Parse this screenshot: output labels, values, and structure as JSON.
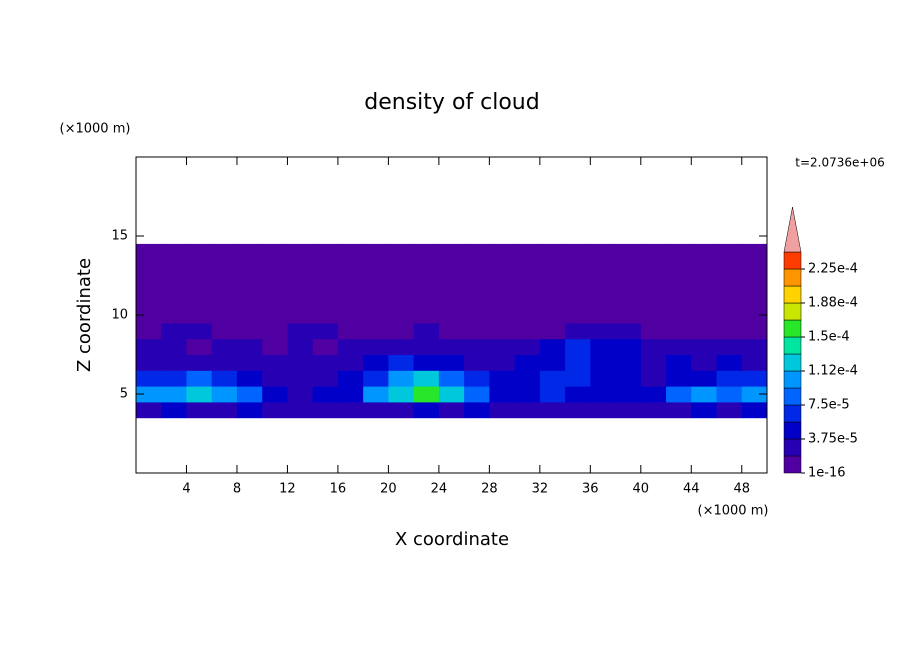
{
  "chart_data": {
    "type": "contour",
    "title": "density of cloud",
    "x_label": "X coordinate",
    "y_label": "Z coordinate",
    "x_unit": "(×1000 m)",
    "y_unit": "(×1000 m)",
    "annotation": "t=2.0736e+06",
    "xlim": [
      0,
      50
    ],
    "ylim": [
      0,
      20
    ],
    "xticks": [
      4,
      8,
      12,
      16,
      20,
      24,
      28,
      32,
      36,
      40,
      44,
      48
    ],
    "yticks": [
      5,
      10,
      15
    ],
    "field": {
      "x_edges": [
        0,
        2,
        4,
        6,
        8,
        10,
        12,
        14,
        16,
        18,
        20,
        22,
        24,
        26,
        28,
        30,
        32,
        34,
        36,
        38,
        40,
        42,
        44,
        46,
        48,
        50
      ],
      "z_edges": [
        3.5,
        4.5,
        5.5,
        6.5,
        7.5,
        8.5,
        9.5,
        14.5
      ],
      "values": [
        [
          3e-05,
          4e-05,
          3e-05,
          3e-05,
          4e-05,
          2e-05,
          2e-05,
          2e-05,
          3e-05,
          2e-05,
          3e-05,
          4e-05,
          3e-05,
          4e-05,
          3e-05,
          2e-05,
          3e-05,
          2e-05,
          2e-05,
          3e-05,
          2e-05,
          3e-05,
          4e-05,
          3e-05,
          4e-05
        ],
        [
          0.0001,
          0.00011,
          0.00012,
          0.00011,
          8e-05,
          4e-05,
          3e-05,
          4e-05,
          5e-05,
          0.0001,
          0.00013,
          0.00016,
          0.00012,
          9e-05,
          4e-05,
          5e-05,
          6e-05,
          4e-05,
          5e-05,
          4e-05,
          5e-05,
          8e-05,
          0.0001,
          9e-05,
          0.0001
        ],
        [
          6e-05,
          7e-05,
          8e-05,
          6e-05,
          4e-05,
          3e-05,
          2e-05,
          3e-05,
          4e-05,
          7e-05,
          0.00011,
          0.00013,
          9e-05,
          7e-05,
          4e-05,
          5e-05,
          6e-05,
          7e-05,
          5e-05,
          4e-05,
          3e-05,
          4e-05,
          5e-05,
          6e-05,
          7e-05
        ],
        [
          3e-05,
          2e-05,
          3e-05,
          2e-05,
          2e-05,
          3e-05,
          2e-05,
          3e-05,
          3e-05,
          4e-05,
          6e-05,
          5e-05,
          4e-05,
          3e-05,
          3e-05,
          4e-05,
          5e-05,
          6e-05,
          4e-05,
          5e-05,
          3e-05,
          4e-05,
          3e-05,
          4e-05,
          3e-05
        ],
        [
          2.5e-05,
          2e-05,
          1.5e-05,
          2e-05,
          2e-05,
          1.5e-05,
          2e-05,
          1.5e-05,
          2e-05,
          2e-05,
          2.5e-05,
          2e-05,
          2e-05,
          2.5e-05,
          2e-05,
          3e-05,
          4e-05,
          6e-05,
          5e-05,
          4e-05,
          2e-05,
          2.5e-05,
          2e-05,
          2e-05,
          2e-05
        ],
        [
          1e-05,
          2e-05,
          2e-05,
          1e-05,
          1e-05,
          1e-05,
          2e-05,
          2e-05,
          1e-05,
          1e-05,
          1e-05,
          2e-05,
          1e-05,
          1e-05,
          1e-05,
          1e-05,
          1e-05,
          2e-05,
          2e-05,
          2e-05,
          1e-05,
          1e-05,
          1e-05,
          1e-05,
          1e-05
        ],
        [
          5e-06,
          5e-06,
          5e-06,
          5e-06,
          5e-06,
          5e-06,
          5e-06,
          5e-06,
          5e-06,
          5e-06,
          5e-06,
          5e-06,
          5e-06,
          5e-06,
          5e-06,
          5e-06,
          5e-06,
          5e-06,
          5e-06,
          5e-06,
          5e-06,
          5e-06,
          5e-06,
          5e-06,
          5e-06
        ]
      ]
    },
    "colorbar": {
      "lim": [
        0,
        0.00024375
      ],
      "colors": [
        "#5000a0",
        "#2800b4",
        "#0000c8",
        "#0028e6",
        "#0064ff",
        "#0096ff",
        "#00c8dc",
        "#00e6a0",
        "#28e628",
        "#c8e600",
        "#ffd200",
        "#ff9600",
        "#ff3c00"
      ],
      "extend_color": "#f0a0a0",
      "ticks": [
        {
          "value": 1e-16,
          "label": "1e-16"
        },
        {
          "value": 3.75e-05,
          "label": "3.75e-5"
        },
        {
          "value": 7.5e-05,
          "label": "7.5e-5"
        },
        {
          "value": 0.0001125,
          "label": "1.12e-4"
        },
        {
          "value": 0.00015,
          "label": "1.5e-4"
        },
        {
          "value": 0.0001875,
          "label": "1.88e-4"
        },
        {
          "value": 0.000225,
          "label": "2.25e-4"
        }
      ]
    }
  }
}
